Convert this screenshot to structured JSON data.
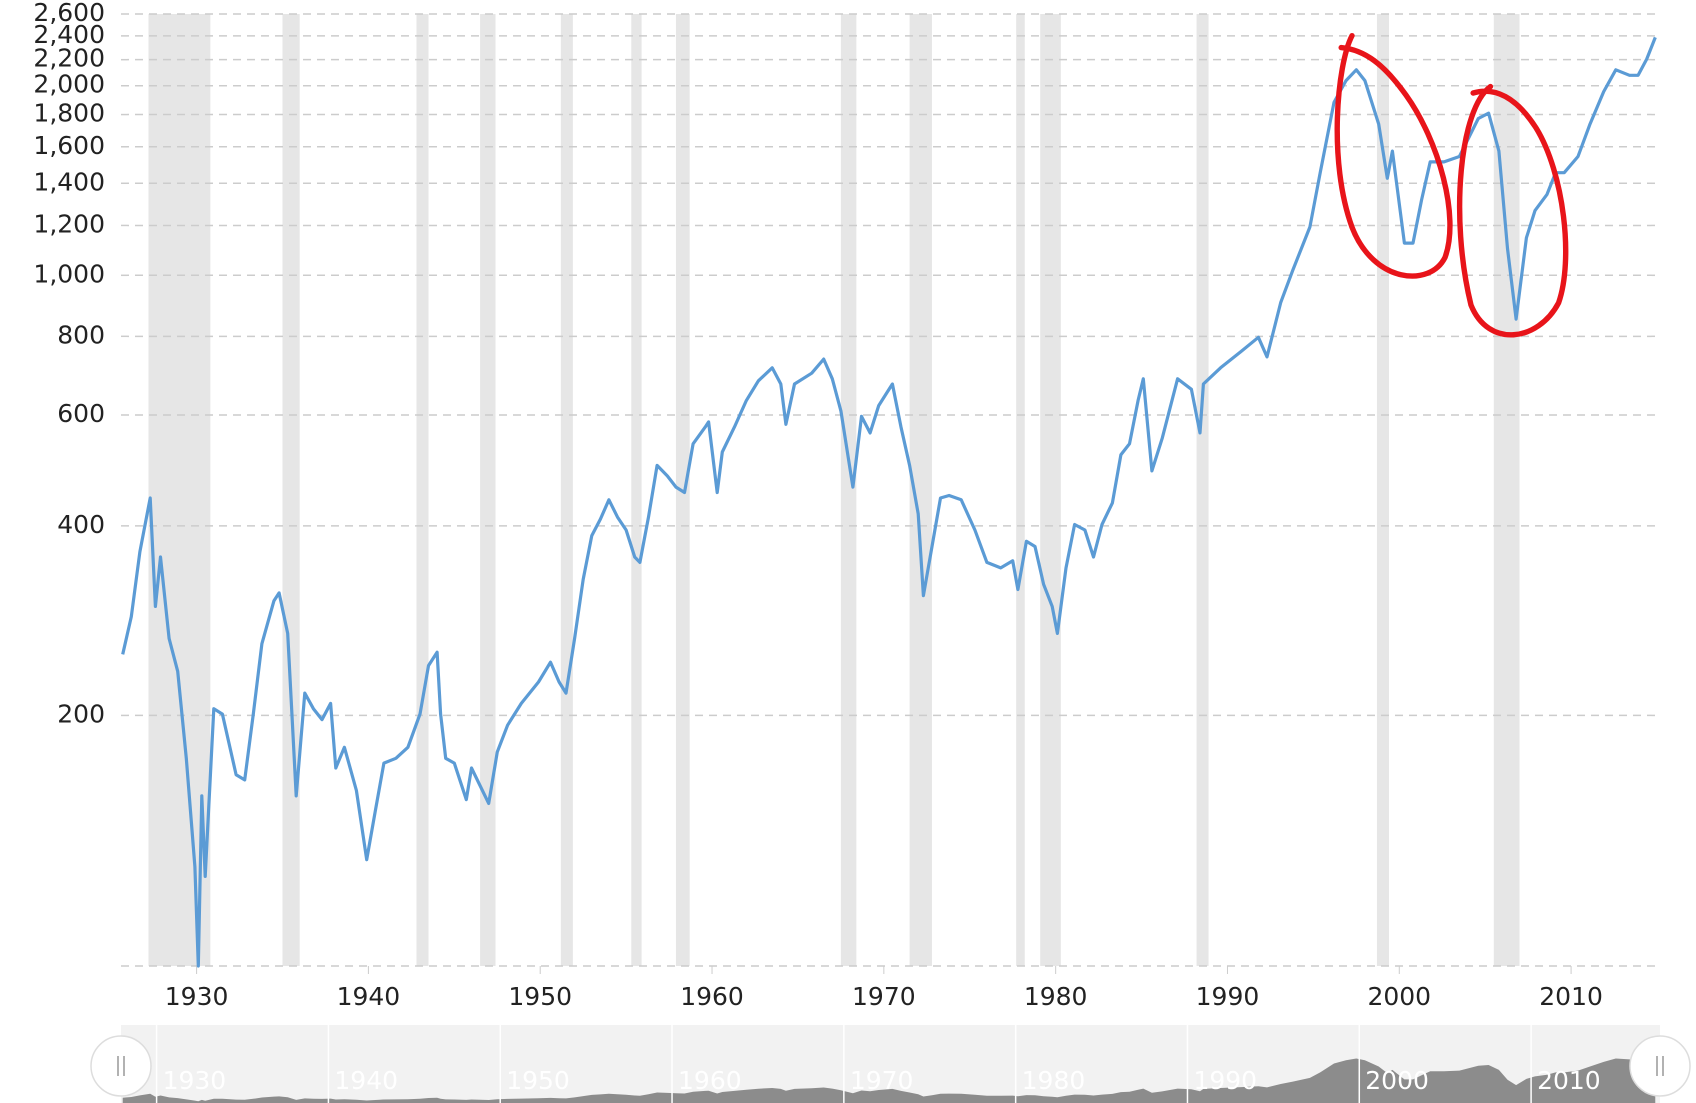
{
  "chart_data": {
    "type": "line",
    "log_y": true,
    "grid": true,
    "xlim": [
      1925.6,
      2015.0
    ],
    "ylim": [
      80,
      2600
    ],
    "xticks": [
      1930,
      1940,
      1950,
      1960,
      1970,
      1980,
      1990,
      2000,
      2010
    ],
    "yticks": [
      200,
      400,
      600,
      800,
      {
        "value": 1000,
        "label": "1,000"
      },
      {
        "value": 1200,
        "label": "1,200"
      },
      {
        "value": 1400,
        "label": "1,400"
      },
      {
        "value": 1600,
        "label": "1,600"
      },
      {
        "value": 1800,
        "label": "1,800"
      },
      {
        "value": 2000,
        "label": "2,000"
      },
      {
        "value": 2200,
        "label": "2,200"
      },
      {
        "value": 2400,
        "label": "2,400"
      },
      {
        "value": 2600,
        "label": "2,600"
      }
    ],
    "recessions": [
      [
        1927.2,
        1930.8
      ],
      [
        1935.0,
        1936.0
      ],
      [
        1942.8,
        1943.5
      ],
      [
        1946.5,
        1947.4
      ],
      [
        1951.2,
        1951.9
      ],
      [
        1955.3,
        1955.9
      ],
      [
        1957.9,
        1958.7
      ],
      [
        1967.5,
        1968.4
      ],
      [
        1971.5,
        1972.8
      ],
      [
        1977.7,
        1978.2
      ],
      [
        1979.1,
        1980.3
      ],
      [
        1988.2,
        1988.9
      ],
      [
        1998.7,
        1999.4
      ],
      [
        2005.5,
        2007.0
      ]
    ],
    "series": [
      {
        "color": "#5b9bd5",
        "x": [
          1925.7,
          1926.2,
          1926.7,
          1927.3,
          1927.6,
          1927.9,
          1928.4,
          1928.9,
          1929.4,
          1929.9,
          1930.1,
          1930.3,
          1930.5,
          1931.0,
          1931.5,
          1932.3,
          1932.8,
          1933.3,
          1933.8,
          1934.5,
          1934.8,
          1935.3,
          1935.8,
          1936.3,
          1936.8,
          1937.3,
          1937.8,
          1938.1,
          1938.6,
          1939.3,
          1939.9,
          1940.4,
          1940.9,
          1941.6,
          1942.3,
          1943.0,
          1943.5,
          1944.0,
          1944.2,
          1944.5,
          1945.0,
          1945.7,
          1946.0,
          1947.0,
          1947.5,
          1948.1,
          1948.9,
          1949.9,
          1950.6,
          1951.1,
          1951.5,
          1952.0,
          1952.5,
          1953.0,
          1953.5,
          1954.0,
          1954.5,
          1955.0,
          1955.5,
          1955.8,
          1956.3,
          1956.8,
          1957.4,
          1957.9,
          1958.4,
          1958.9,
          1959.6,
          1959.8,
          1960.3,
          1960.6,
          1961.3,
          1962.0,
          1962.7,
          1963.5,
          1964.0,
          1964.3,
          1964.8,
          1965.8,
          1966.5,
          1967.0,
          1967.5,
          1968.2,
          1968.7,
          1969.2,
          1969.7,
          1970.5,
          1971.0,
          1971.5,
          1972.0,
          1972.3,
          1972.8,
          1973.3,
          1973.8,
          1974.5,
          1975.3,
          1976.0,
          1976.8,
          1977.5,
          1977.8,
          1978.3,
          1978.8,
          1979.3,
          1979.8,
          1980.1,
          1980.6,
          1981.1,
          1981.7,
          1982.2,
          1982.7,
          1983.3,
          1983.8,
          1984.3,
          1984.8,
          1985.1,
          1985.6,
          1986.2,
          1987.1,
          1987.9,
          1988.4,
          1988.6,
          1989.6,
          1990.8,
          1991.8,
          1992.3,
          1993.1,
          1993.8,
          1994.8,
          1995.4,
          1996.2,
          1996.9,
          1997.5,
          1998.0,
          1998.8,
          1999.3,
          1999.6,
          2000.3,
          2000.8,
          2001.3,
          2001.8,
          2002.6,
          2003.5,
          2004.6,
          2005.2,
          2005.8,
          2006.3,
          2006.8,
          2007.4,
          2007.9,
          2008.6,
          2009.1,
          2009.6,
          2010.4,
          2011.1,
          2011.9,
          2012.6,
          2013.4,
          2013.9,
          2014.4,
          2014.9
        ],
        "values": [
          250,
          287,
          364,
          443,
          298,
          357,
          265,
          235,
          171,
          115,
          80,
          149,
          111,
          205,
          201,
          161,
          158,
          201,
          260,
          304,
          313,
          270,
          149,
          217,
          205,
          197,
          209,
          165,
          178,
          152,
          118,
          141,
          168,
          171,
          178,
          201,
          240,
          252,
          201,
          171,
          168,
          147,
          165,
          145,
          175,
          193,
          209,
          226,
          243,
          226,
          217,
          265,
          329,
          386,
          410,
          440,
          413,
          394,
          357,
          350,
          413,
          499,
          480,
          461,
          452,
          540,
          574,
          585,
          452,
          524,
          574,
          633,
          680,
          713,
          672,
          580,
          672,
          699,
          736,
          685,
          609,
          461,
          597,
          562,
          621,
          672,
          574,
          499,
          418,
          310,
          371,
          443,
          447,
          440,
          394,
          350,
          343,
          352,
          317,
          378,
          371,
          323,
          298,
          270,
          343,
          402,
          394,
          357,
          402,
          435,
          519,
          540,
          633,
          685,
          489,
          551,
          685,
          659,
          562,
          672,
          713,
          757,
          797,
          742,
          905,
          1019,
          1193,
          1455,
          1882,
          2038,
          2120,
          2038,
          1738,
          1426,
          1575,
          1125,
          1125,
          1318,
          1514,
          1514,
          1544,
          1774,
          1809,
          1575,
          1103,
          852,
          1147,
          1267,
          1344,
          1455,
          1455,
          1544,
          1738,
          1958,
          2120,
          2078,
          2078,
          2205,
          2387
        ]
      }
    ]
  }
}
